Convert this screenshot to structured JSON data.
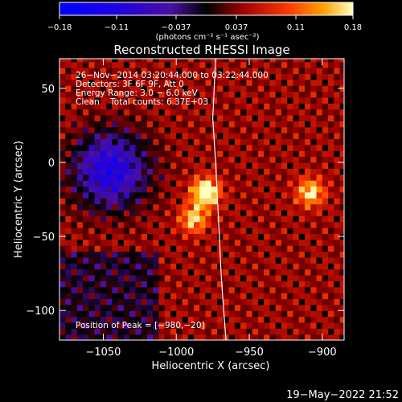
{
  "chart_data": {
    "type": "heatmap",
    "title": "Reconstructed RHESSI Image",
    "xlabel": "Heliocentric X (arcsec)",
    "ylabel": "Heliocentric Y (arcsec)",
    "xlim": [
      -1080,
      -885
    ],
    "ylim": [
      -120,
      70
    ],
    "xticks": [
      -1050,
      -1000,
      -950,
      -900
    ],
    "xtick_labels": [
      "−1050",
      "−1000",
      "−950",
      "−900"
    ],
    "yticks": [
      50,
      0,
      -50,
      -100
    ],
    "ytick_labels": [
      "50",
      "0",
      "−50",
      "−100"
    ],
    "colorbar": {
      "min": -0.18,
      "max": 0.18,
      "ticks": [
        -0.18,
        -0.11,
        -0.037,
        0.037,
        0.11,
        0.18
      ],
      "tick_labels": [
        "−0.18",
        "−0.11",
        "−0.037",
        "0.037",
        "0.11",
        "0.18"
      ],
      "units_label": "(photons cm⁻² s⁻¹ asec⁻²)"
    },
    "annotations": [
      "26−Nov−2014 03:20:44.000 to 03:22:44.000",
      "Detectors: 3F 6F 9F, Att 0",
      "Energy Range: 3.0 − 6.0 keV",
      "Clean    Total counts: 6.37E+03"
    ],
    "peak_label": "Position of Peak = [−980,−20]",
    "peak_position": [
      -980,
      -20
    ],
    "sources": [
      {
        "x": -980,
        "y": -20,
        "peak": 0.18
      },
      {
        "x": -988,
        "y": -38,
        "peak": 0.12
      },
      {
        "x": -908,
        "y": -20,
        "peak": 0.13
      },
      {
        "x": -1045,
        "y": -5,
        "peak": -0.16
      }
    ],
    "limb_curve": [
      [
        -973,
        70
      ],
      [
        -975,
        30
      ],
      [
        -973,
        0
      ],
      [
        -971,
        -40
      ],
      [
        -969,
        -80
      ],
      [
        -966,
        -120
      ]
    ],
    "colors": {
      "background": "#000000",
      "axes": "#ffffff",
      "limb": "#ffffff"
    }
  },
  "footer": {
    "timestamp": "19−May−2022 21:52"
  }
}
